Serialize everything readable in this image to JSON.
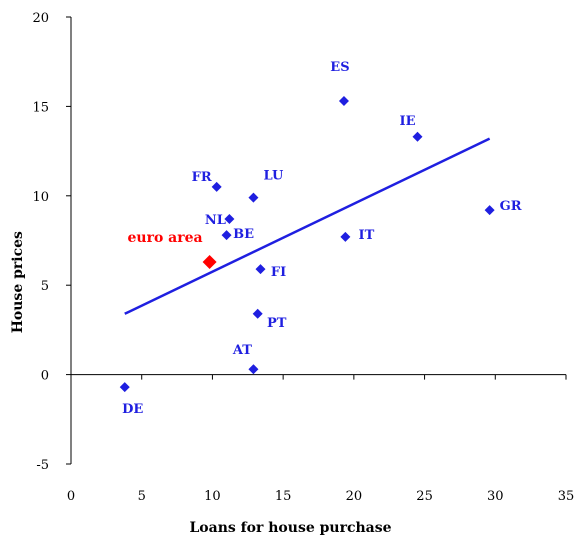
{
  "chart_data": {
    "type": "scatter",
    "title": "",
    "xlabel": "Loans for house purchase",
    "ylabel": "House prices",
    "xlim": [
      0,
      35
    ],
    "ylim": [
      -5,
      20
    ],
    "xticks": [
      0,
      5,
      10,
      15,
      20,
      25,
      30,
      35
    ],
    "yticks": [
      -5,
      0,
      5,
      10,
      15,
      20
    ],
    "xtick_labels": [
      "0",
      "5",
      "10",
      "15",
      "20",
      "25",
      "30",
      "35"
    ],
    "ytick_labels": [
      "-5",
      "0",
      "5",
      "10",
      "15",
      "20"
    ],
    "grid": false,
    "legend": "none",
    "colors": {
      "points": "#1f1fe0",
      "highlight": "#ff0000",
      "trendline": "#1f1fe0",
      "axis": "#000000"
    },
    "points": [
      {
        "label": "ES",
        "x": 19.3,
        "y": 15.3
      },
      {
        "label": "IE",
        "x": 24.5,
        "y": 13.3
      },
      {
        "label": "FR",
        "x": 10.3,
        "y": 10.5
      },
      {
        "label": "LU",
        "x": 12.9,
        "y": 9.9
      },
      {
        "label": "GR",
        "x": 29.6,
        "y": 9.2
      },
      {
        "label": "NL",
        "x": 11.2,
        "y": 8.7
      },
      {
        "label": "BE",
        "x": 11.0,
        "y": 7.8
      },
      {
        "label": "IT",
        "x": 19.4,
        "y": 7.7
      },
      {
        "label": "FI",
        "x": 13.4,
        "y": 5.9
      },
      {
        "label": "PT",
        "x": 13.2,
        "y": 3.4
      },
      {
        "label": "AT",
        "x": 12.9,
        "y": 0.3
      },
      {
        "label": "DE",
        "x": 3.8,
        "y": -0.7
      }
    ],
    "highlight": {
      "label": "euro area",
      "x": 9.8,
      "y": 6.3
    },
    "trendline": {
      "x": [
        3.8,
        29.6
      ],
      "y": [
        3.4,
        13.2
      ]
    }
  }
}
